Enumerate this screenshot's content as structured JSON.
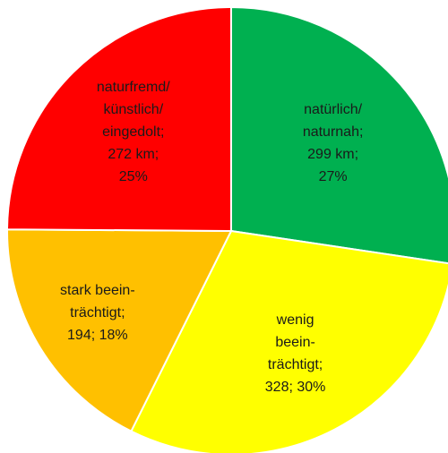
{
  "chart_data": {
    "type": "pie",
    "categories": [
      [
        "natürlich/",
        "naturnah;"
      ],
      [
        "wenig",
        "beein-",
        "trächtigt;"
      ],
      [
        "stark beein-",
        "trächtigt;"
      ],
      [
        "naturfremd/",
        "künstlich/",
        "eingedolt;"
      ]
    ],
    "values": [
      299,
      328,
      194,
      272
    ],
    "value_labels": [
      [
        "299 km;",
        "27%"
      ],
      [
        "328; 30%"
      ],
      [
        "194; 18%"
      ],
      [
        "272 km;",
        "25%"
      ]
    ],
    "colors": [
      "#00b050",
      "#ffff00",
      "#ffc000",
      "#ff0000"
    ]
  }
}
